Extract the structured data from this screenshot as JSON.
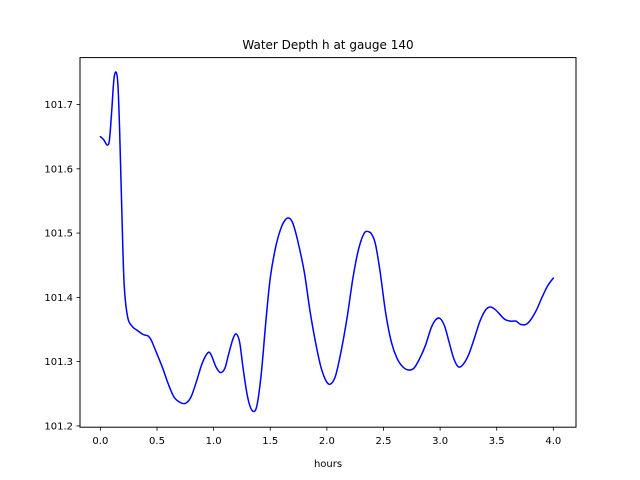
{
  "chart_data": {
    "type": "line",
    "title": "Water Depth h at gauge 140",
    "xlabel": "hours",
    "ylabel": "",
    "xlim": [
      -0.18,
      4.2
    ],
    "ylim": [
      101.198,
      101.773
    ],
    "xticks": [
      0.0,
      0.5,
      1.0,
      1.5,
      2.0,
      2.5,
      3.0,
      3.5,
      4.0
    ],
    "xtick_labels": [
      "0.0",
      "0.5",
      "1.0",
      "1.5",
      "2.0",
      "2.5",
      "3.0",
      "3.5",
      "4.0"
    ],
    "yticks": [
      101.2,
      101.3,
      101.4,
      101.5,
      101.6,
      101.7
    ],
    "ytick_labels": [
      "101.2",
      "101.3",
      "101.4",
      "101.5",
      "101.6",
      "101.7"
    ],
    "grid": false,
    "line_color": "#0000ff",
    "series": [
      {
        "x": [
          0.0,
          0.03,
          0.06,
          0.08,
          0.1,
          0.12,
          0.14,
          0.155,
          0.17,
          0.19,
          0.21,
          0.24,
          0.28,
          0.33,
          0.38,
          0.42,
          0.45,
          0.5,
          0.55,
          0.6,
          0.65,
          0.7,
          0.75,
          0.8,
          0.85,
          0.9,
          0.95,
          0.98,
          1.02,
          1.06,
          1.1,
          1.13,
          1.17,
          1.2,
          1.23,
          1.26,
          1.3,
          1.34,
          1.38,
          1.42,
          1.46,
          1.5,
          1.55,
          1.6,
          1.64,
          1.67,
          1.7,
          1.74,
          1.8,
          1.85,
          1.9,
          1.95,
          2.0,
          2.04,
          2.08,
          2.13,
          2.18,
          2.23,
          2.28,
          2.33,
          2.37,
          2.4,
          2.43,
          2.47,
          2.52,
          2.57,
          2.62,
          2.67,
          2.72,
          2.77,
          2.82,
          2.87,
          2.92,
          2.96,
          3.0,
          3.04,
          3.08,
          3.12,
          3.16,
          3.2,
          3.25,
          3.3,
          3.35,
          3.4,
          3.44,
          3.48,
          3.52,
          3.57,
          3.62,
          3.67,
          3.71,
          3.76,
          3.8,
          3.85,
          3.9,
          3.95,
          4.0
        ],
        "y": [
          101.65,
          101.645,
          101.637,
          101.645,
          101.69,
          101.74,
          101.75,
          101.73,
          101.66,
          101.53,
          101.42,
          101.37,
          101.355,
          101.348,
          101.342,
          101.34,
          101.333,
          101.312,
          101.29,
          101.265,
          101.245,
          101.237,
          101.235,
          101.245,
          101.27,
          101.298,
          101.314,
          101.31,
          101.292,
          101.283,
          101.29,
          101.31,
          101.335,
          101.343,
          101.33,
          101.29,
          101.245,
          101.224,
          101.23,
          101.28,
          101.36,
          101.43,
          101.48,
          101.51,
          101.522,
          101.523,
          101.515,
          101.49,
          101.44,
          101.38,
          101.33,
          101.29,
          101.268,
          101.266,
          101.28,
          101.32,
          101.37,
          101.43,
          101.475,
          101.5,
          101.502,
          101.497,
          101.482,
          101.44,
          101.375,
          101.33,
          101.305,
          101.292,
          101.287,
          101.29,
          101.305,
          101.325,
          101.352,
          101.365,
          101.367,
          101.355,
          101.33,
          101.305,
          101.292,
          101.295,
          101.31,
          101.335,
          101.362,
          101.38,
          101.385,
          101.382,
          101.375,
          101.366,
          101.363,
          101.363,
          101.358,
          101.358,
          101.365,
          101.38,
          101.4,
          101.418,
          101.43
        ]
      }
    ]
  }
}
